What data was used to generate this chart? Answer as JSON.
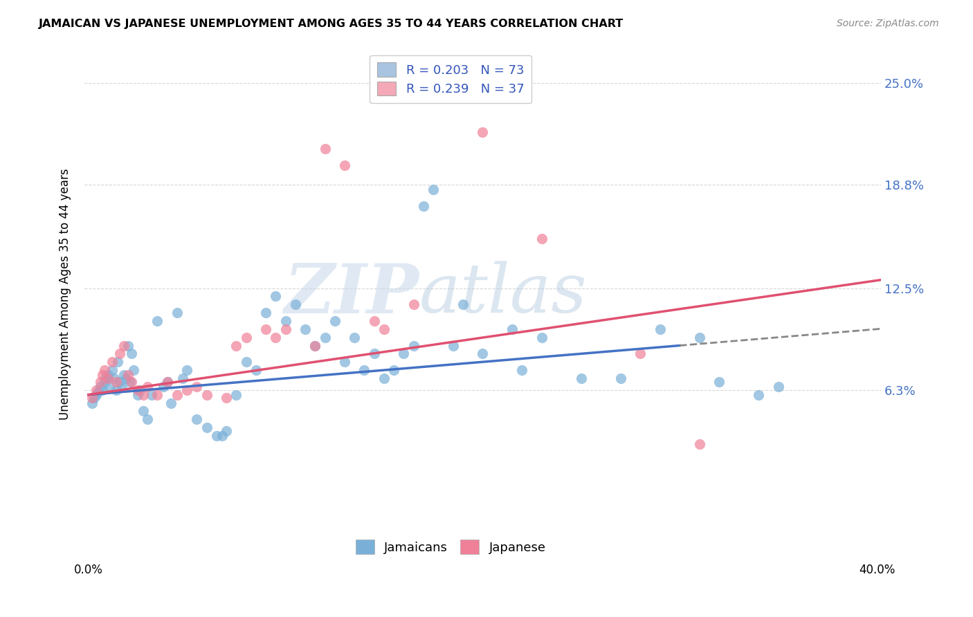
{
  "title": "JAMAICAN VS JAPANESE UNEMPLOYMENT AMONG AGES 35 TO 44 YEARS CORRELATION CHART",
  "source": "Source: ZipAtlas.com",
  "ylabel": "Unemployment Among Ages 35 to 44 years",
  "yticks": [
    "6.3%",
    "12.5%",
    "18.8%",
    "25.0%"
  ],
  "ytick_vals": [
    0.063,
    0.125,
    0.188,
    0.25
  ],
  "xlim": [
    -0.002,
    0.402
  ],
  "ylim": [
    -0.025,
    0.268
  ],
  "legend_entries": [
    {
      "label_r": "R = 0.203",
      "label_n": "N = 73",
      "color": "#a8c4e0"
    },
    {
      "label_r": "R = 0.239",
      "label_n": "N = 37",
      "color": "#f4a8b8"
    }
  ],
  "scatter_jamaicans": {
    "color": "#7ab0d8",
    "x": [
      0.002,
      0.003,
      0.004,
      0.005,
      0.006,
      0.007,
      0.008,
      0.009,
      0.01,
      0.011,
      0.012,
      0.013,
      0.014,
      0.015,
      0.016,
      0.017,
      0.018,
      0.019,
      0.02,
      0.021,
      0.022,
      0.023,
      0.025,
      0.026,
      0.028,
      0.03,
      0.032,
      0.035,
      0.038,
      0.04,
      0.042,
      0.045,
      0.048,
      0.05,
      0.055,
      0.06,
      0.065,
      0.068,
      0.07,
      0.075,
      0.08,
      0.085,
      0.09,
      0.095,
      0.1,
      0.105,
      0.11,
      0.115,
      0.12,
      0.125,
      0.13,
      0.135,
      0.14,
      0.145,
      0.15,
      0.155,
      0.16,
      0.165,
      0.17,
      0.175,
      0.185,
      0.19,
      0.2,
      0.215,
      0.22,
      0.23,
      0.25,
      0.27,
      0.29,
      0.31,
      0.32,
      0.34,
      0.35
    ],
    "y": [
      0.055,
      0.058,
      0.06,
      0.062,
      0.065,
      0.063,
      0.068,
      0.07,
      0.072,
      0.065,
      0.075,
      0.07,
      0.063,
      0.08,
      0.068,
      0.065,
      0.072,
      0.07,
      0.09,
      0.068,
      0.085,
      0.075,
      0.06,
      0.063,
      0.05,
      0.045,
      0.06,
      0.105,
      0.065,
      0.068,
      0.055,
      0.11,
      0.07,
      0.075,
      0.045,
      0.04,
      0.035,
      0.035,
      0.038,
      0.06,
      0.08,
      0.075,
      0.11,
      0.12,
      0.105,
      0.115,
      0.1,
      0.09,
      0.095,
      0.105,
      0.08,
      0.095,
      0.075,
      0.085,
      0.07,
      0.075,
      0.085,
      0.09,
      0.175,
      0.185,
      0.09,
      0.115,
      0.085,
      0.1,
      0.075,
      0.095,
      0.07,
      0.07,
      0.1,
      0.095,
      0.068,
      0.06,
      0.065
    ]
  },
  "scatter_japanese": {
    "color": "#f08098",
    "x": [
      0.002,
      0.004,
      0.006,
      0.007,
      0.008,
      0.01,
      0.012,
      0.014,
      0.016,
      0.018,
      0.02,
      0.022,
      0.025,
      0.028,
      0.03,
      0.035,
      0.04,
      0.045,
      0.05,
      0.055,
      0.06,
      0.07,
      0.075,
      0.08,
      0.09,
      0.095,
      0.1,
      0.115,
      0.12,
      0.13,
      0.145,
      0.15,
      0.165,
      0.2,
      0.23,
      0.28,
      0.31
    ],
    "y": [
      0.058,
      0.063,
      0.068,
      0.072,
      0.075,
      0.07,
      0.08,
      0.068,
      0.085,
      0.09,
      0.072,
      0.068,
      0.063,
      0.06,
      0.065,
      0.06,
      0.068,
      0.06,
      0.063,
      0.065,
      0.06,
      0.058,
      0.09,
      0.095,
      0.1,
      0.095,
      0.1,
      0.09,
      0.21,
      0.2,
      0.105,
      0.1,
      0.115,
      0.22,
      0.155,
      0.085,
      0.03
    ]
  },
  "trend_jamaicans": {
    "x_solid_start": 0.0,
    "x_solid_end": 0.3,
    "x_dash_start": 0.3,
    "x_dash_end": 0.402,
    "y_start": 0.06,
    "y_end_solid": 0.09,
    "y_end_dash": 0.098,
    "color": "#4472c4",
    "color_dashed": "#888888"
  },
  "trend_japanese": {
    "x_start": 0.0,
    "x_end": 0.402,
    "y_start": 0.06,
    "y_end": 0.13,
    "color": "#e05070"
  },
  "watermark_zip": "ZIP",
  "watermark_atlas": "atlas",
  "bg_color": "#ffffff",
  "grid_color": "#cccccc"
}
